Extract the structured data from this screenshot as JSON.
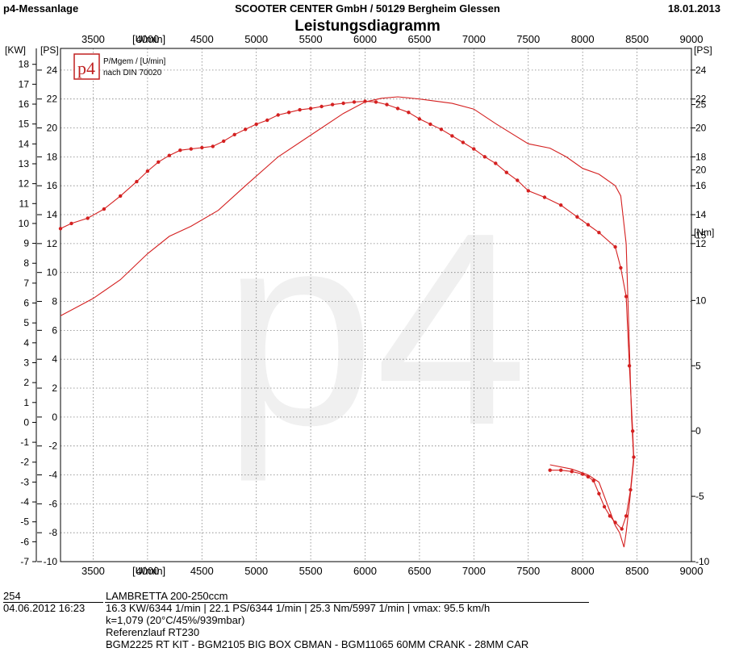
{
  "header": {
    "app_title": "p4-Messanlage",
    "company": "SCOOTER CENTER GmbH / 50129 Bergheim Glessen",
    "date": "18.01.2013",
    "chart_title": "Leistungsdiagramm"
  },
  "logo": {
    "text": "p4",
    "line1": "P/Mgem / [U/min]",
    "line2": "nach DIN 70020",
    "watermark": "p4"
  },
  "footer": {
    "run_id": "254",
    "run_date": "04.06.2012  16:23",
    "vehicle": "LAMBRETTA 200-250ccm",
    "results": "16.3 KW/6344 1/min  |  22.1 PS/6344 1/min  |  25.3 Nm/5997 1/min | vmax: 95.5 km/h",
    "conditions": "k=1,079 (20°C/45%/939mbar)",
    "reference": "Referenzlauf RT230",
    "setup": "BGM2225 RT KIT - BGM2105 BIG BOX CBMAN - BGM11065 60MM CRANK - 28MM CAR"
  },
  "chart_data": {
    "type": "line",
    "title": "Leistungsdiagramm",
    "xlabel": "[U/min]",
    "x_range": [
      3200,
      9000
    ],
    "x_ticks": [
      3500,
      4000,
      4500,
      5000,
      5500,
      6000,
      6500,
      7000,
      7500,
      8000,
      8500,
      9000
    ],
    "axes": {
      "kw": {
        "label": "[KW]",
        "range": [
          -7,
          18.8
        ],
        "ticks": [
          -7,
          -6,
          -5,
          -4,
          -3,
          -2,
          -1,
          0,
          1,
          2,
          3,
          4,
          5,
          6,
          7,
          8,
          9,
          10,
          11,
          12,
          13,
          14,
          15,
          16,
          17,
          18
        ]
      },
      "ps_left": {
        "label": "[PS]",
        "range": [
          -10,
          25.5
        ],
        "ticks": [
          -10,
          -8,
          -6,
          -4,
          -2,
          0,
          2,
          4,
          6,
          8,
          10,
          12,
          14,
          16,
          18,
          20,
          22,
          24
        ]
      },
      "ps_right": {
        "label": "[PS]",
        "range": [
          -10,
          25.5
        ],
        "ticks": [
          12,
          14,
          16,
          18,
          20,
          22,
          24
        ]
      },
      "nm": {
        "label": "[Nm]",
        "range": [
          -10,
          29.3
        ],
        "ticks": [
          -10,
          -5,
          0,
          5,
          10,
          15,
          20,
          25
        ]
      }
    },
    "grid": true,
    "series": [
      {
        "axis": "ps_left",
        "color": "#d42020",
        "markers": false,
        "points": [
          [
            3200,
            7.0
          ],
          [
            3500,
            8.2
          ],
          [
            3750,
            9.5
          ],
          [
            4000,
            11.3
          ],
          [
            4200,
            12.5
          ],
          [
            4400,
            13.2
          ],
          [
            4650,
            14.3
          ],
          [
            4900,
            16.0
          ],
          [
            5200,
            18.0
          ],
          [
            5500,
            19.5
          ],
          [
            5800,
            21.0
          ],
          [
            6000,
            21.8
          ],
          [
            6150,
            22.05
          ],
          [
            6300,
            22.15
          ],
          [
            6500,
            22.0
          ],
          [
            6800,
            21.7
          ],
          [
            7000,
            21.3
          ],
          [
            7200,
            20.3
          ],
          [
            7500,
            18.9
          ],
          [
            7700,
            18.6
          ],
          [
            7850,
            18.0
          ],
          [
            8000,
            17.2
          ],
          [
            8150,
            16.8
          ],
          [
            8300,
            16.0
          ],
          [
            8350,
            15.3
          ],
          [
            8400,
            12.0
          ],
          [
            8450,
            0
          ],
          [
            8470,
            -3
          ],
          [
            8430,
            -6
          ],
          [
            8400,
            -8
          ],
          [
            8380,
            -9.0
          ],
          [
            8340,
            -8.0
          ],
          [
            8300,
            -7.5
          ],
          [
            8250,
            -6.5
          ],
          [
            8150,
            -4.5
          ],
          [
            8050,
            -4.0
          ],
          [
            7900,
            -3.6
          ],
          [
            7700,
            -3.3
          ]
        ]
      },
      {
        "axis": "nm",
        "color": "#d42020",
        "markers": true,
        "points": [
          [
            3200,
            15.5
          ],
          [
            3300,
            15.9
          ],
          [
            3450,
            16.3
          ],
          [
            3600,
            17.0
          ],
          [
            3750,
            18.0
          ],
          [
            3900,
            19.1
          ],
          [
            4000,
            19.9
          ],
          [
            4100,
            20.6
          ],
          [
            4200,
            21.1
          ],
          [
            4300,
            21.5
          ],
          [
            4400,
            21.6
          ],
          [
            4500,
            21.7
          ],
          [
            4600,
            21.8
          ],
          [
            4700,
            22.2
          ],
          [
            4800,
            22.7
          ],
          [
            4900,
            23.1
          ],
          [
            5000,
            23.5
          ],
          [
            5100,
            23.8
          ],
          [
            5200,
            24.2
          ],
          [
            5300,
            24.4
          ],
          [
            5400,
            24.6
          ],
          [
            5500,
            24.7
          ],
          [
            5600,
            24.85
          ],
          [
            5700,
            25.0
          ],
          [
            5800,
            25.1
          ],
          [
            5900,
            25.2
          ],
          [
            6000,
            25.25
          ],
          [
            6100,
            25.2
          ],
          [
            6200,
            25.0
          ],
          [
            6300,
            24.7
          ],
          [
            6400,
            24.4
          ],
          [
            6500,
            23.9
          ],
          [
            6600,
            23.5
          ],
          [
            6700,
            23.1
          ],
          [
            6800,
            22.6
          ],
          [
            6900,
            22.1
          ],
          [
            7000,
            21.6
          ],
          [
            7100,
            21.0
          ],
          [
            7200,
            20.5
          ],
          [
            7300,
            19.8
          ],
          [
            7400,
            19.2
          ],
          [
            7500,
            18.4
          ],
          [
            7650,
            17.9
          ],
          [
            7800,
            17.3
          ],
          [
            7950,
            16.4
          ],
          [
            8050,
            15.8
          ],
          [
            8150,
            15.2
          ],
          [
            8300,
            14.1
          ],
          [
            8350,
            12.5
          ],
          [
            8400,
            10.3
          ],
          [
            8430,
            5
          ],
          [
            8460,
            0
          ],
          [
            8470,
            -2
          ],
          [
            8440,
            -4.5
          ],
          [
            8400,
            -6.5
          ],
          [
            8360,
            -7.5
          ],
          [
            8300,
            -7.0
          ],
          [
            8250,
            -6.5
          ],
          [
            8200,
            -5.8
          ],
          [
            8150,
            -4.8
          ],
          [
            8100,
            -3.8
          ],
          [
            8050,
            -3.5
          ],
          [
            8000,
            -3.3
          ],
          [
            7900,
            -3.1
          ],
          [
            7800,
            -3.0
          ],
          [
            7700,
            -3.0
          ]
        ]
      }
    ]
  }
}
